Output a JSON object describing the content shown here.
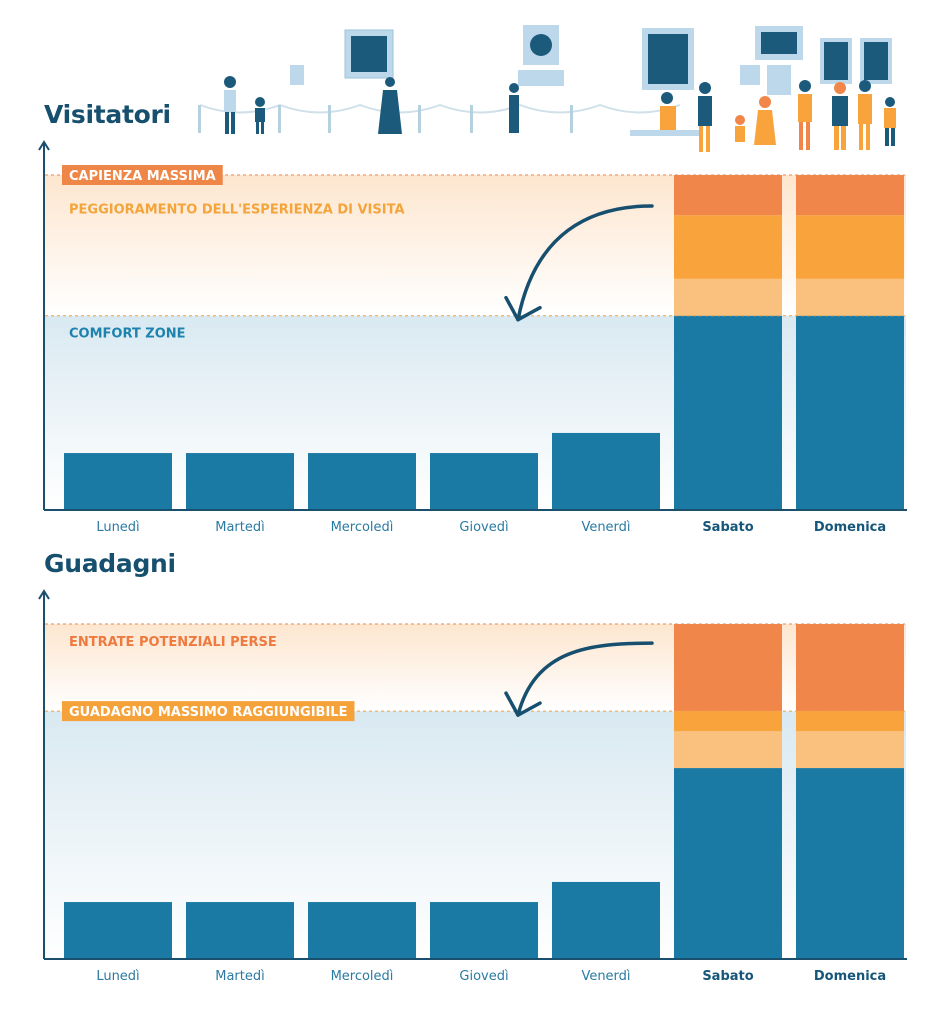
{
  "chart_data": [
    {
      "type": "bar",
      "title": "Visitatori",
      "categories": [
        "Lunedì",
        "Martedì",
        "Mercoledì",
        "Giovedì",
        "Venerdì",
        "Sabato",
        "Domenica"
      ],
      "highlighted_categories": [
        "Sabato",
        "Domenica"
      ],
      "ylim": [
        0,
        100
      ],
      "thresholds": [
        {
          "value": 100,
          "label": "CAPIENZA MASSIMA",
          "style": "badge"
        },
        {
          "value": 58,
          "label": "COMFORT ZONE",
          "style": "text"
        }
      ],
      "band_labels": [
        {
          "value": 90,
          "label": "PEGGIORAMENTO DELL'ESPERIENZA DI VISITA"
        }
      ],
      "series": [
        {
          "values": [
            17,
            17,
            17,
            17,
            23,
            58,
            58
          ]
        },
        {
          "values": [
            0,
            0,
            0,
            0,
            0,
            11,
            11
          ]
        },
        {
          "values": [
            0,
            0,
            0,
            0,
            0,
            19,
            19
          ]
        },
        {
          "values": [
            0,
            0,
            0,
            0,
            0,
            12,
            12
          ]
        }
      ]
    },
    {
      "type": "bar",
      "title": "Guadagni",
      "categories": [
        "Lunedì",
        "Martedì",
        "Mercoledì",
        "Giovedì",
        "Venerdì",
        "Sabato",
        "Domenica"
      ],
      "highlighted_categories": [
        "Sabato",
        "Domenica"
      ],
      "ylim": [
        0,
        100
      ],
      "thresholds": [
        {
          "value": 100,
          "label": "",
          "style": "none"
        },
        {
          "value": 74,
          "label": "GUADAGNO MASSIMO RAGGIUNGIBILE",
          "style": "badge"
        }
      ],
      "band_labels": [
        {
          "value": 95,
          "label": "ENTRATE POTENZIALI PERSE"
        }
      ],
      "series": [
        {
          "values": [
            17,
            17,
            17,
            17,
            23,
            57,
            57
          ]
        },
        {
          "values": [
            0,
            0,
            0,
            0,
            0,
            11,
            11
          ]
        },
        {
          "values": [
            0,
            0,
            0,
            0,
            0,
            6,
            6
          ]
        },
        {
          "values": [
            0,
            0,
            0,
            0,
            0,
            26,
            26
          ]
        }
      ]
    }
  ],
  "colors": {
    "title": "#17506f",
    "axis": "#1b4f6e",
    "bar": "#1a7aa3",
    "bar_light_orange": "#f9c07e",
    "bar_mid_orange": "#f8a33c",
    "bar_dark_orange": "#f1864a",
    "band_orange_top": "#fde6cf",
    "band_blue_top": "#d9e9f1",
    "comfort_label": "#1d82ae",
    "warning_label": "#f3a43b",
    "loss_label": "#ef7a3f",
    "badge": "#ee8647",
    "badge_light": "#f6a23a"
  }
}
